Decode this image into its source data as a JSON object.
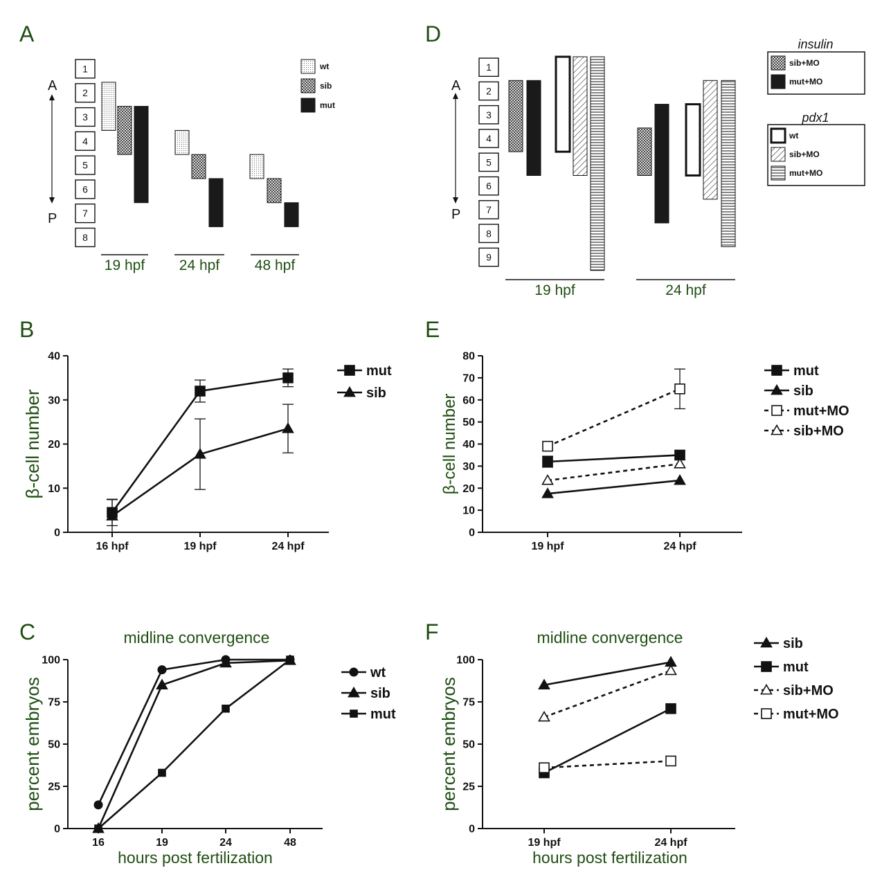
{
  "panels": {
    "A": {
      "letter": "A",
      "anterior": "A",
      "posterior": "P",
      "somites": [
        "1",
        "2",
        "3",
        "4",
        "5",
        "6",
        "7",
        "8"
      ],
      "timepoints": [
        "19 hpf",
        "24 hpf",
        "48 hpf"
      ],
      "legend": [
        "wt",
        "sib",
        "mut"
      ],
      "bars": [
        {
          "time": "19 hpf",
          "genotype": "wt",
          "from": 1,
          "to": 3
        },
        {
          "time": "19 hpf",
          "genotype": "sib",
          "from": 2,
          "to": 4
        },
        {
          "time": "19 hpf",
          "genotype": "mut",
          "from": 2,
          "to": 6
        },
        {
          "time": "24 hpf",
          "genotype": "wt",
          "from": 3,
          "to": 4
        },
        {
          "time": "24 hpf",
          "genotype": "sib",
          "from": 4,
          "to": 5
        },
        {
          "time": "24 hpf",
          "genotype": "mut",
          "from": 5,
          "to": 7
        },
        {
          "time": "48 hpf",
          "genotype": "wt",
          "from": 4,
          "to": 5
        },
        {
          "time": "48 hpf",
          "genotype": "sib",
          "from": 5,
          "to": 6
        },
        {
          "time": "48 hpf",
          "genotype": "mut",
          "from": 6,
          "to": 7
        }
      ]
    },
    "D": {
      "letter": "D",
      "anterior": "A",
      "posterior": "P",
      "somites": [
        "1",
        "2",
        "3",
        "4",
        "5",
        "6",
        "7",
        "8",
        "9"
      ],
      "timepoints": [
        "19 hpf",
        "24 hpf"
      ],
      "legend_insulin_title": "insulin",
      "legend_insulin": [
        "sib+MO",
        "mut+MO"
      ],
      "legend_pdx1_title": "pdx1",
      "legend_pdx1": [
        "wt",
        "sib+MO",
        "mut+MO"
      ],
      "bars": [
        {
          "time": "19 hpf",
          "marker": "insulin",
          "genotype": "sib+MO",
          "from": 1,
          "to": 4
        },
        {
          "time": "19 hpf",
          "marker": "insulin",
          "genotype": "mut+MO",
          "from": 1,
          "to": 5
        },
        {
          "time": "19 hpf",
          "marker": "pdx1",
          "genotype": "wt",
          "from": 0,
          "to": 4
        },
        {
          "time": "19 hpf",
          "marker": "pdx1",
          "genotype": "sib+MO",
          "from": 0,
          "to": 5
        },
        {
          "time": "19 hpf",
          "marker": "pdx1",
          "genotype": "mut+MO",
          "from": 0,
          "to": 9
        },
        {
          "time": "24 hpf",
          "marker": "insulin",
          "genotype": "sib+MO",
          "from": 3,
          "to": 5
        },
        {
          "time": "24 hpf",
          "marker": "insulin",
          "genotype": "mut+MO",
          "from": 2,
          "to": 7
        },
        {
          "time": "24 hpf",
          "marker": "pdx1",
          "genotype": "wt",
          "from": 2,
          "to": 5
        },
        {
          "time": "24 hpf",
          "marker": "pdx1",
          "genotype": "sib+MO",
          "from": 1,
          "to": 6
        },
        {
          "time": "24 hpf",
          "marker": "pdx1",
          "genotype": "mut+MO",
          "from": 1,
          "to": 8
        }
      ]
    },
    "B": {
      "letter": "B"
    },
    "E": {
      "letter": "E"
    },
    "C": {
      "letter": "C"
    },
    "F": {
      "letter": "F"
    }
  },
  "chart_data": [
    {
      "panel": "B",
      "type": "line",
      "categories": [
        "16 hpf",
        "19 hpf",
        "24 hpf"
      ],
      "ylabel": "β-cell number",
      "xlabel": "",
      "title": "",
      "ylim": [
        0,
        40
      ],
      "yticks": [
        0,
        10,
        20,
        30,
        40
      ],
      "series": [
        {
          "name": "mut",
          "marker": "square",
          "dash": false,
          "values": [
            4.5,
            32,
            35
          ],
          "errors": [
            3,
            2.5,
            2
          ]
        },
        {
          "name": "sib",
          "marker": "triangle",
          "dash": false,
          "values": [
            3.7,
            17.7,
            23.5
          ],
          "errors": [
            3.7,
            8,
            5.5
          ]
        }
      ]
    },
    {
      "panel": "E",
      "type": "line",
      "categories": [
        "19 hpf",
        "24 hpf"
      ],
      "ylabel": "β-cell number",
      "xlabel": "",
      "title": "",
      "ylim": [
        0,
        80
      ],
      "yticks": [
        0,
        10,
        20,
        30,
        40,
        50,
        60,
        70,
        80
      ],
      "series": [
        {
          "name": "mut",
          "marker": "square",
          "dash": false,
          "values": [
            32,
            35
          ],
          "errors": [
            2.5,
            2
          ]
        },
        {
          "name": "sib",
          "marker": "triangle",
          "dash": false,
          "values": [
            17.5,
            23.5
          ],
          "errors": [
            0,
            0
          ]
        },
        {
          "name": "mut+MO",
          "marker": "open-square",
          "dash": true,
          "values": [
            39,
            65
          ],
          "errors": [
            0,
            9
          ]
        },
        {
          "name": "sib+MO",
          "marker": "open-triangle",
          "dash": true,
          "values": [
            23.5,
            31
          ],
          "errors": [
            0,
            0
          ]
        }
      ]
    },
    {
      "panel": "C",
      "type": "line",
      "categories": [
        "16",
        "19",
        "24",
        "48"
      ],
      "ylabel": "percent embryos",
      "xlabel": "hours post fertilization",
      "title": "midline convergence",
      "ylim": [
        0,
        100
      ],
      "yticks": [
        0,
        25,
        50,
        75,
        100
      ],
      "series": [
        {
          "name": "wt",
          "marker": "circle",
          "dash": false,
          "values": [
            14,
            94,
            100,
            100
          ]
        },
        {
          "name": "sib",
          "marker": "triangle",
          "dash": false,
          "values": [
            0,
            85,
            98,
            99.5
          ]
        },
        {
          "name": "mut",
          "marker": "small-square",
          "dash": false,
          "values": [
            0,
            33,
            71,
            100
          ]
        }
      ]
    },
    {
      "panel": "F",
      "type": "line",
      "categories": [
        "19 hpf",
        "24 hpf"
      ],
      "ylabel": "percent embryos",
      "xlabel": "hours post fertilization",
      "title": "midline convergence",
      "ylim": [
        0,
        100
      ],
      "yticks": [
        0,
        25,
        50,
        75,
        100
      ],
      "series": [
        {
          "name": "sib",
          "marker": "triangle",
          "dash": false,
          "values": [
            85,
            98.5
          ]
        },
        {
          "name": "mut",
          "marker": "square",
          "dash": false,
          "values": [
            33,
            71
          ]
        },
        {
          "name": "sib+MO",
          "marker": "open-triangle",
          "dash": true,
          "values": [
            66,
            93.5
          ]
        },
        {
          "name": "mut+MO",
          "marker": "open-square",
          "dash": true,
          "values": [
            36,
            40
          ]
        }
      ]
    }
  ]
}
